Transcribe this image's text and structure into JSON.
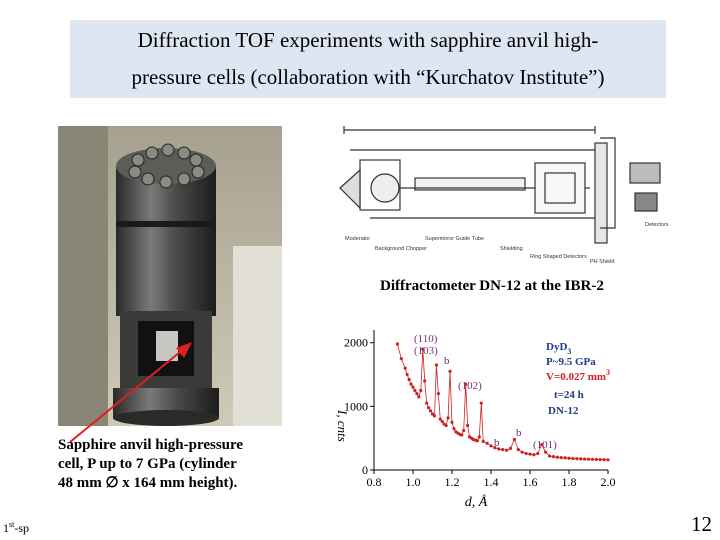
{
  "header": {
    "title_line1": "Diffraction TOF experiments with sapphire anvil high-",
    "title_line2": "pressure cells (collaboration with “Kurchatov Institute”)"
  },
  "photo": {
    "name": "sapphire-anvil-cell-photo"
  },
  "schematic": {
    "caption": "Diffractometer DN-12 at the IBR-2",
    "labels": [
      "Moderator",
      "Background Chopper",
      "Supermirror Guide Tube",
      "Shielding",
      "Ring Shaped Detectors",
      "PH Shield",
      "Detectors"
    ]
  },
  "cell_caption": {
    "line1": "Sapphire anvil high-pressure",
    "line2": "cell, P up to 7 GPa (cylinder",
    "line3": "48 mm ∅ x 164 mm height)."
  },
  "footer": {
    "left_main": "1",
    "left_sup": "st",
    "left_rest": "-sp",
    "page_number": "12"
  },
  "chart_data": {
    "type": "scatter",
    "xlabel": "d, Å",
    "ylabel": "I, cnts",
    "xlim": [
      0.8,
      2.0
    ],
    "ylim": [
      0,
      2200
    ],
    "x_ticks": [
      "0.8",
      "1.0",
      "1.2",
      "1.4",
      "1.6",
      "1.8",
      "2.0"
    ],
    "y_ticks": [
      "0",
      "1000",
      "2000"
    ],
    "x": [
      0.92,
      0.94,
      0.96,
      0.97,
      0.98,
      0.99,
      1.0,
      1.01,
      1.02,
      1.03,
      1.04,
      1.05,
      1.06,
      1.07,
      1.08,
      1.09,
      1.1,
      1.11,
      1.12,
      1.13,
      1.14,
      1.15,
      1.16,
      1.17,
      1.18,
      1.19,
      1.2,
      1.21,
      1.22,
      1.23,
      1.24,
      1.25,
      1.26,
      1.27,
      1.28,
      1.29,
      1.3,
      1.31,
      1.32,
      1.33,
      1.34,
      1.35,
      1.36,
      1.38,
      1.4,
      1.42,
      1.44,
      1.46,
      1.48,
      1.5,
      1.52,
      1.54,
      1.56,
      1.58,
      1.6,
      1.62,
      1.64,
      1.66,
      1.68,
      1.7,
      1.72,
      1.74,
      1.76,
      1.78,
      1.8,
      1.82,
      1.84,
      1.86,
      1.88,
      1.9,
      1.92,
      1.94,
      1.96,
      1.98,
      2.0
    ],
    "y": [
      1980,
      1750,
      1600,
      1500,
      1420,
      1350,
      1300,
      1250,
      1200,
      1150,
      1250,
      1900,
      1400,
      1050,
      980,
      930,
      880,
      850,
      1650,
      1200,
      800,
      760,
      720,
      700,
      820,
      1550,
      750,
      650,
      600,
      580,
      560,
      550,
      620,
      1350,
      700,
      520,
      500,
      480,
      470,
      460,
      520,
      1050,
      450,
      420,
      380,
      350,
      330,
      320,
      310,
      340,
      480,
      320,
      280,
      260,
      250,
      240,
      260,
      400,
      280,
      220,
      210,
      200,
      195,
      190,
      185,
      180,
      178,
      175,
      172,
      170,
      168,
      166,
      164,
      162,
      160
    ],
    "annotations": [
      "(110)",
      "(103)",
      "b",
      "(102)",
      "b",
      "b",
      "(101)"
    ],
    "legend": {
      "sample": "DyD",
      "sample_sub": "3",
      "pressure": "P~9.5 GPa",
      "volume": "V=0.027 mm",
      "volume_sup": "3",
      "time": "t=24 h",
      "instrument": "DN-12"
    },
    "colors": {
      "data": "#cc2222",
      "annotation": "#7a2a7a",
      "sample": "#1f3a8a",
      "volume": "#cc2222"
    }
  }
}
